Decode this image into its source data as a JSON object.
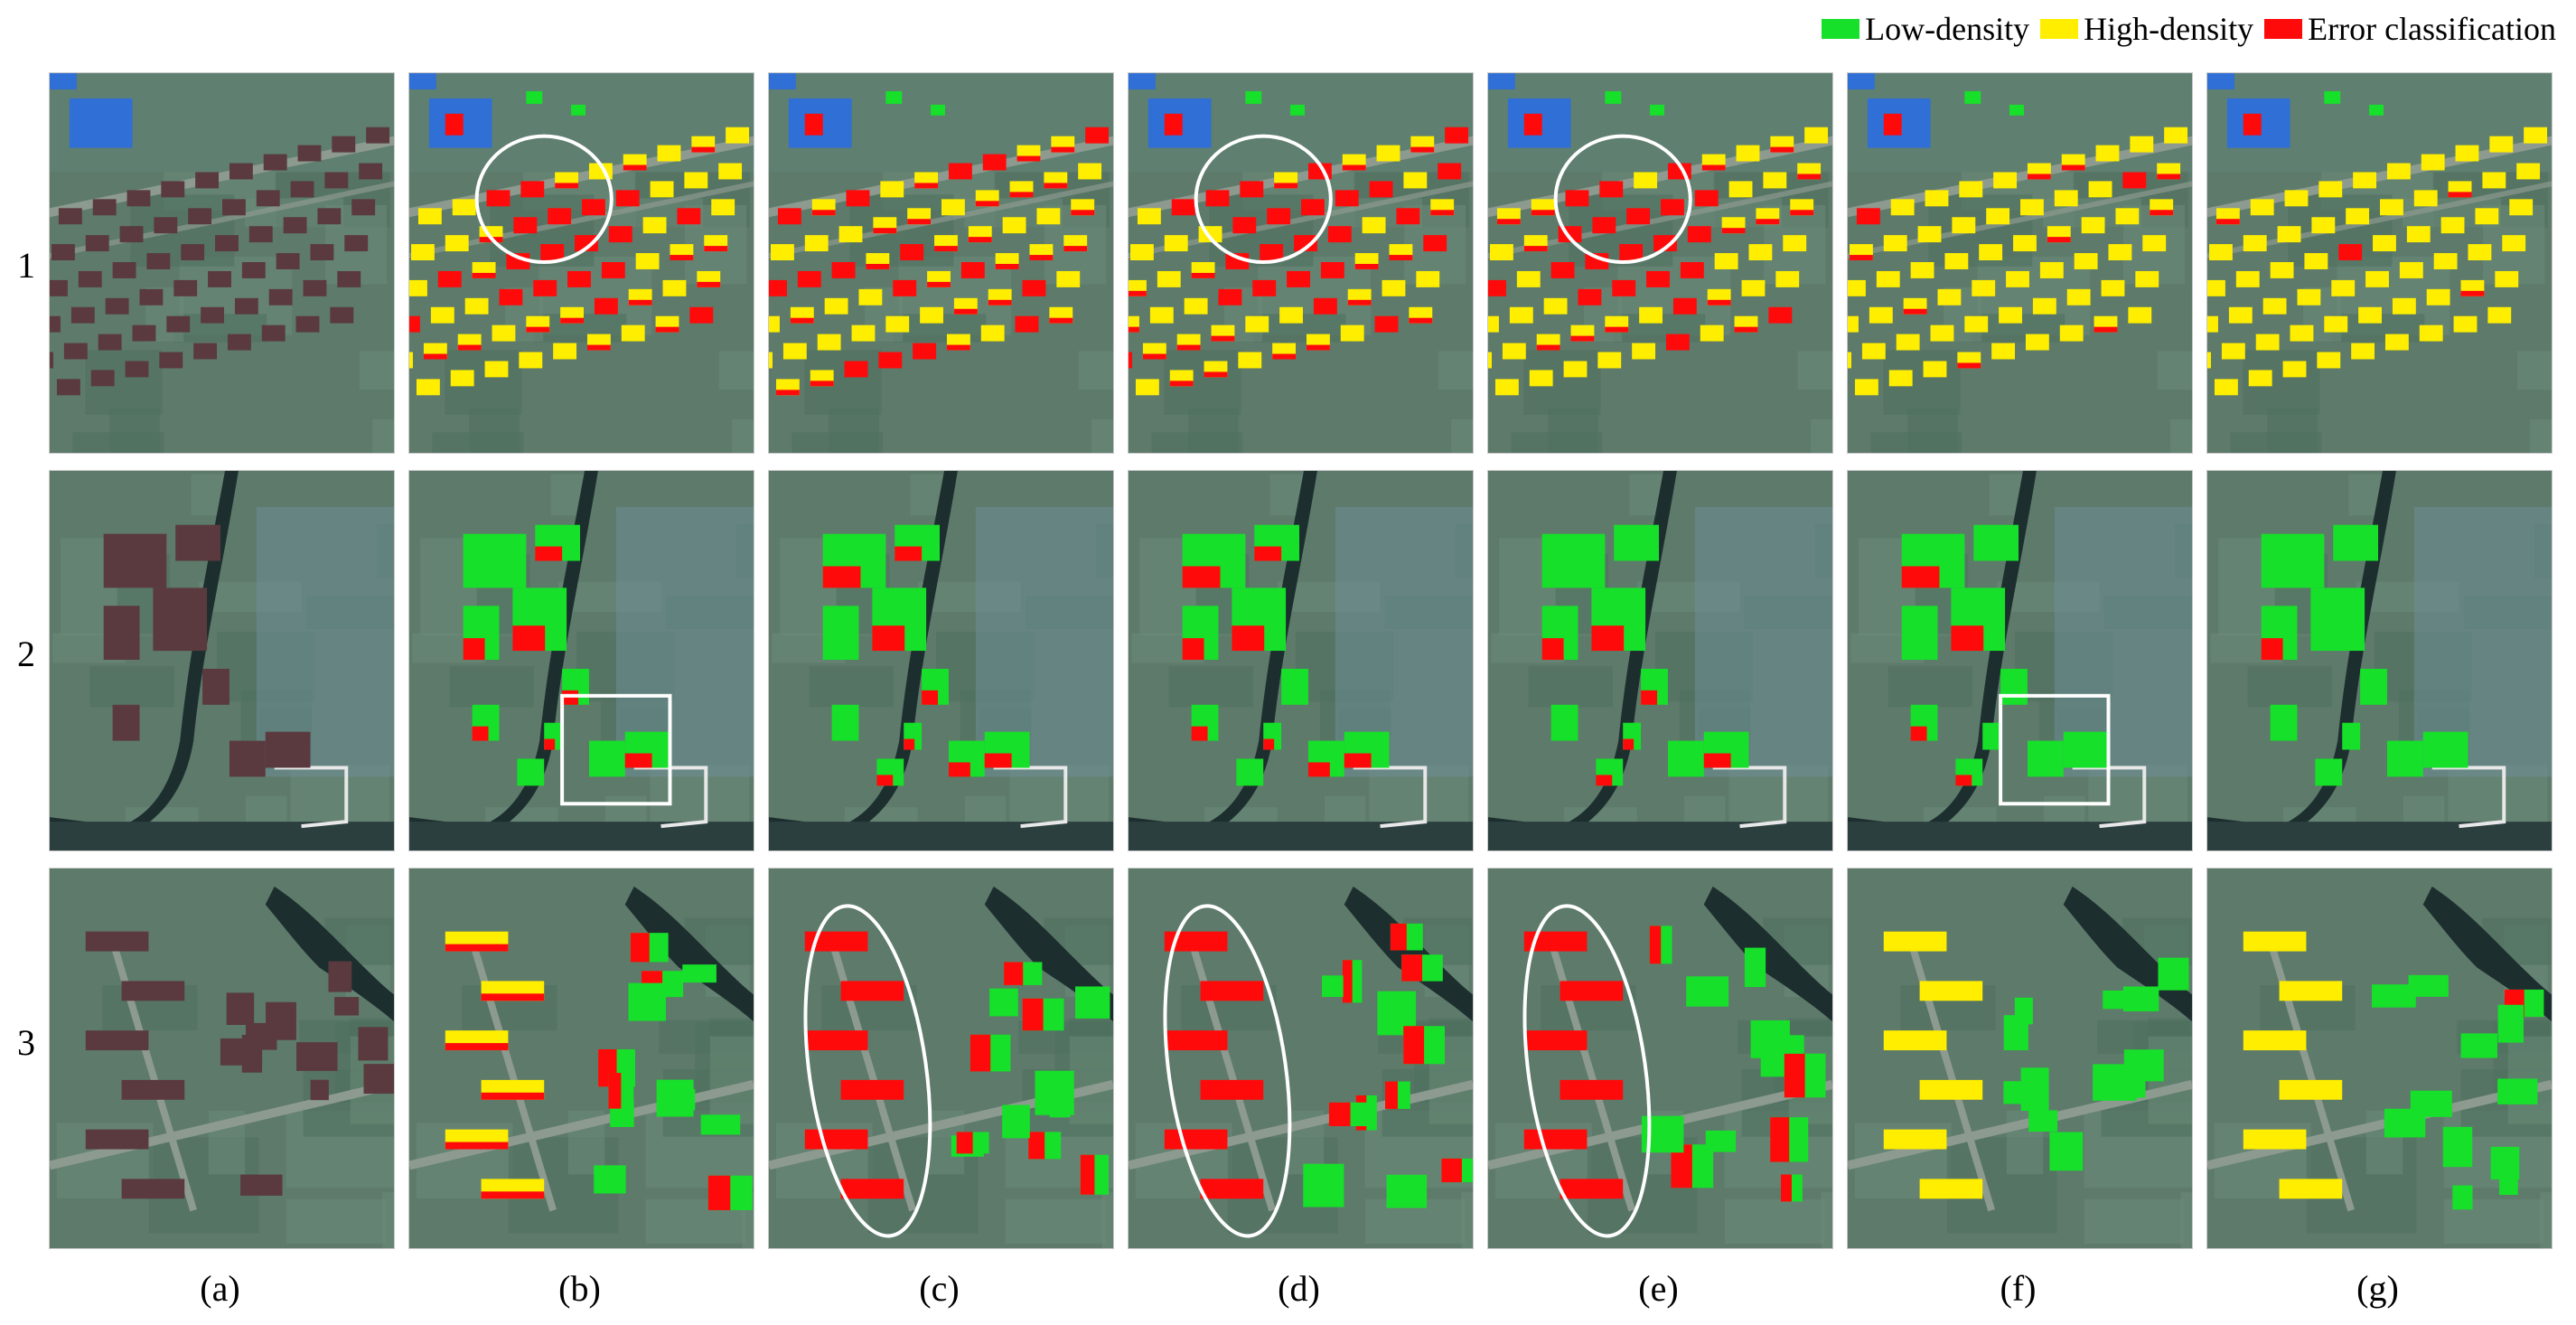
{
  "legend": {
    "items": [
      {
        "label": "Low-density",
        "color": "#16e02a"
      },
      {
        "label": "High-density",
        "color": "#ffee00"
      },
      {
        "label": "Error classification",
        "color": "#ff0a0a"
      }
    ]
  },
  "rows": [
    "1",
    "2",
    "3"
  ],
  "columns": [
    "(a)",
    "(b)",
    "(c)",
    "(d)",
    "(e)",
    "(f)",
    "(g)"
  ],
  "colors": {
    "ground": "#5d7a6a",
    "field": "#4f6f5e",
    "road": "#8d9a8f",
    "water": "#1d2e2f",
    "roof": "#5a3a3e",
    "blue_roof": "#2f6fd6",
    "low": "#16e02a",
    "high": "#ffee00",
    "error": "#ff0a0a",
    "marker": "#ffffff"
  }
}
